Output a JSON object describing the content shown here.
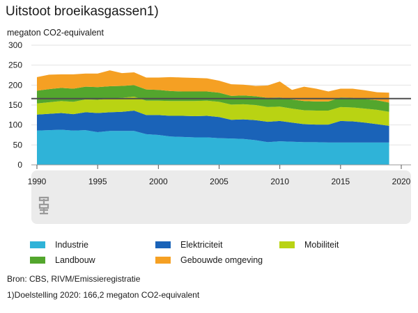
{
  "title": "Uitstoot broeikasgassen1)",
  "unit_label": "megaton CO2-equivalent",
  "source": "Bron: CBS, RIVM/Emissieregistratie",
  "footnote": "1)Doelstelling 2020: 166,2 megaton CO2-equivalent",
  "logo": "cbs",
  "chart_data": {
    "type": "area",
    "stacked": true,
    "title": "Uitstoot broeikasgassen1)",
    "ylabel": "megaton CO2-equivalent",
    "xlabel": "",
    "ylim": [
      0,
      300
    ],
    "xlim": [
      1990,
      2020
    ],
    "yticks": [
      0,
      50,
      100,
      150,
      200,
      250,
      300
    ],
    "xticks": [
      1990,
      1995,
      2000,
      2005,
      2010,
      2015,
      2020
    ],
    "grid": "horizontal",
    "x": [
      1990,
      1991,
      1992,
      1993,
      1994,
      1995,
      1996,
      1997,
      1998,
      1999,
      2000,
      2001,
      2002,
      2003,
      2004,
      2005,
      2006,
      2007,
      2008,
      2009,
      2010,
      2011,
      2012,
      2013,
      2014,
      2015,
      2016,
      2017,
      2018,
      2019
    ],
    "series": [
      {
        "name": "Industrie",
        "color": "#2fb3d8",
        "values": [
          86,
          87,
          88,
          86,
          87,
          82,
          85,
          85,
          85,
          77,
          75,
          71,
          70,
          69,
          69,
          67,
          66,
          65,
          62,
          57,
          59,
          58,
          57,
          57,
          56,
          56,
          56,
          56,
          56,
          56
        ]
      },
      {
        "name": "Elektriciteit",
        "color": "#1a63b8",
        "values": [
          40,
          41,
          42,
          41,
          45,
          48,
          47,
          48,
          51,
          48,
          50,
          52,
          53,
          53,
          54,
          53,
          47,
          49,
          50,
          51,
          51,
          48,
          45,
          44,
          45,
          54,
          53,
          50,
          46,
          42
        ]
      },
      {
        "name": "Mobiliteit",
        "color": "#b9d313",
        "values": [
          28,
          29,
          30,
          31,
          32,
          33,
          34,
          35,
          35,
          36,
          36,
          37,
          37,
          38,
          38,
          38,
          38,
          38,
          38,
          37,
          36,
          35,
          35,
          35,
          35,
          35,
          35,
          35,
          36,
          35
        ]
      },
      {
        "name": "Landbouw",
        "color": "#53a62d",
        "values": [
          32,
          33,
          33,
          33,
          32,
          32,
          31,
          30,
          29,
          28,
          27,
          25,
          24,
          24,
          23,
          23,
          22,
          22,
          22,
          23,
          23,
          23,
          23,
          23,
          23,
          24,
          24,
          24,
          24,
          23
        ]
      },
      {
        "name": "Gebouwde omgeving",
        "color": "#f5a023",
        "values": [
          34,
          36,
          34,
          36,
          33,
          34,
          40,
          32,
          32,
          30,
          31,
          35,
          35,
          34,
          33,
          30,
          29,
          27,
          26,
          31,
          40,
          24,
          36,
          32,
          25,
          22,
          23,
          22,
          20,
          25
        ]
      }
    ],
    "target_line": {
      "value": 166.2
    },
    "legend": "bottom"
  }
}
